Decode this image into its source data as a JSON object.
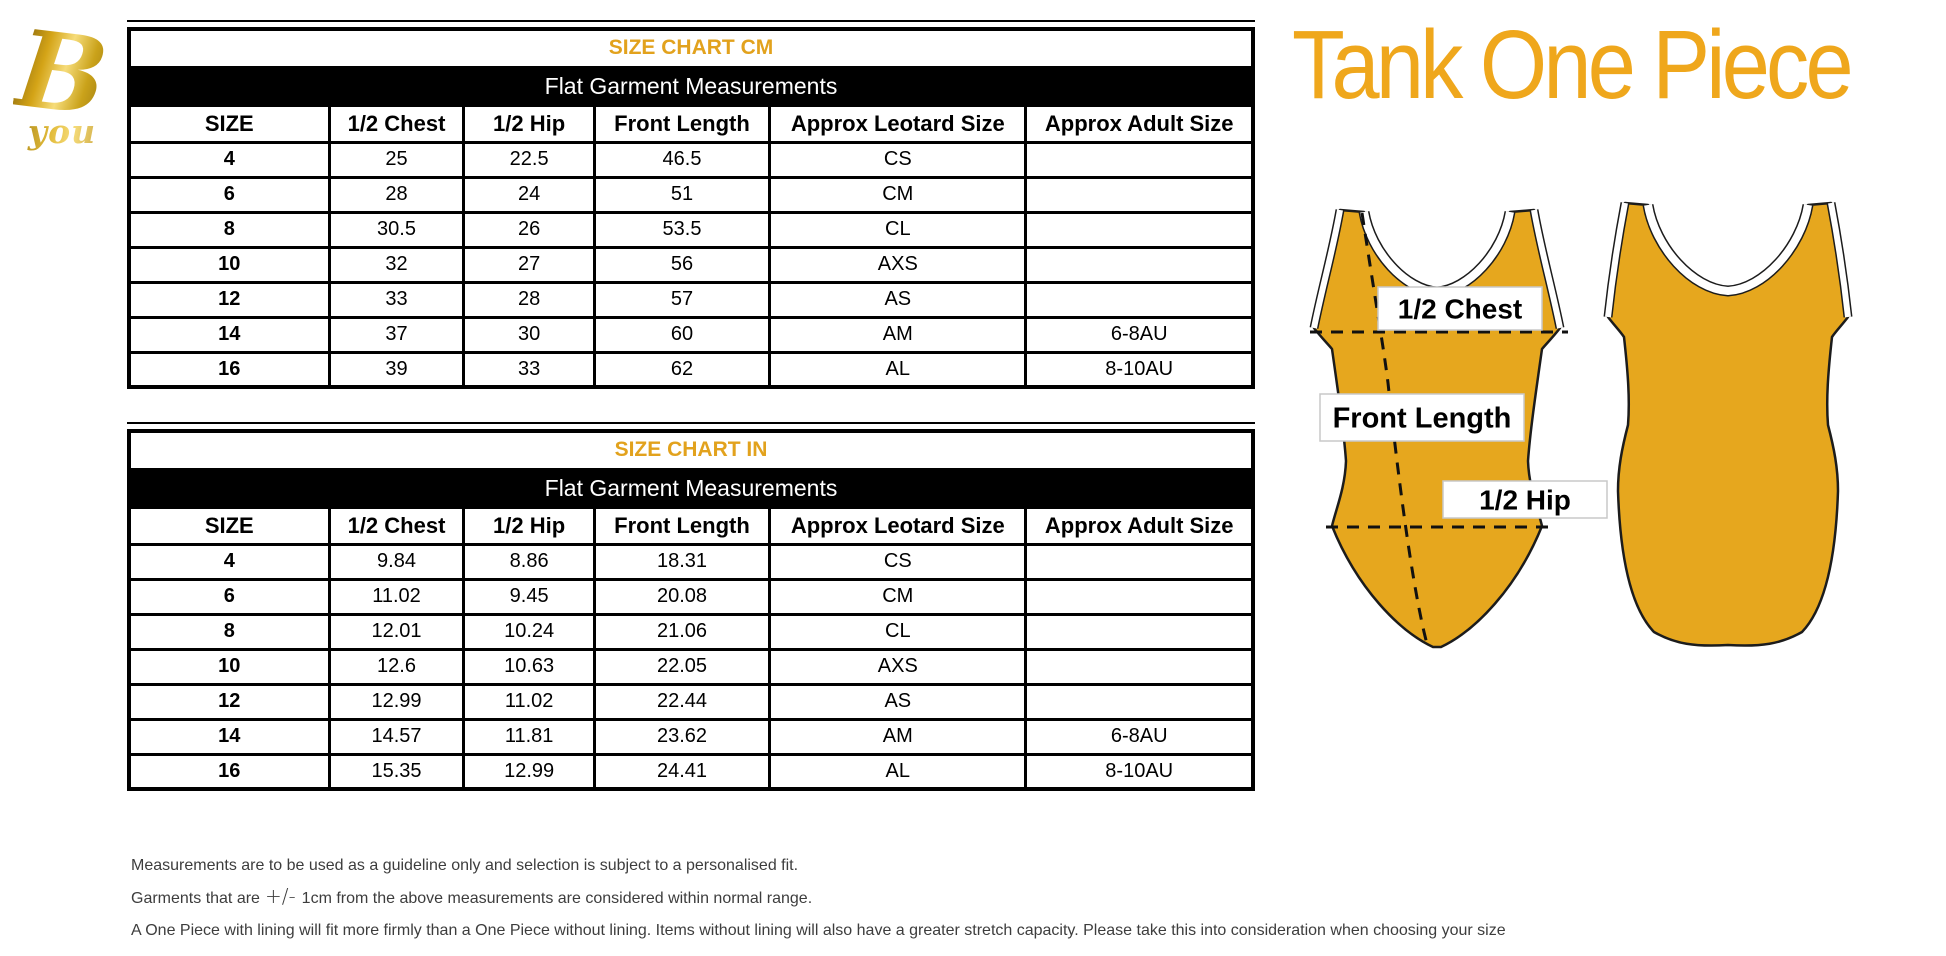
{
  "brand": {
    "letter": "B",
    "word": "you"
  },
  "product": {
    "title": "Tank One Piece"
  },
  "colors": {
    "table_title_gold": "#E2A21D",
    "product_title_gold": "#EFA71C",
    "leotard_gold": "#E6A71E",
    "subtitle_bar": "#000000",
    "footnote_text": "#3d3d3d"
  },
  "tables": [
    {
      "name": "size-chart-cm",
      "title": "SIZE CHART CM",
      "subtitle": "Flat Garment Measurements",
      "columns": [
        "SIZE",
        "1/2 Chest",
        "1/2 Hip",
        "Front Length",
        "Approx Leotard Size",
        "Approx Adult Size"
      ],
      "rows": [
        [
          "4",
          "25",
          "22.5",
          "46.5",
          "CS",
          ""
        ],
        [
          "6",
          "28",
          "24",
          "51",
          "CM",
          ""
        ],
        [
          "8",
          "30.5",
          "26",
          "53.5",
          "CL",
          ""
        ],
        [
          "10",
          "32",
          "27",
          "56",
          "AXS",
          ""
        ],
        [
          "12",
          "33",
          "28",
          "57",
          "AS",
          ""
        ],
        [
          "14",
          "37",
          "30",
          "60",
          "AM",
          "6-8AU"
        ],
        [
          "16",
          "39",
          "33",
          "62",
          "AL",
          "8-10AU"
        ]
      ]
    },
    {
      "name": "size-chart-in",
      "title": "SIZE CHART IN",
      "subtitle": "Flat Garment Measurements",
      "columns": [
        "SIZE",
        "1/2 Chest",
        "1/2 Hip",
        "Front Length",
        "Approx Leotard Size",
        "Approx Adult Size"
      ],
      "rows": [
        [
          "4",
          "9.84",
          "8.86",
          "18.31",
          "CS",
          ""
        ],
        [
          "6",
          "11.02",
          "9.45",
          "20.08",
          "CM",
          ""
        ],
        [
          "8",
          "12.01",
          "10.24",
          "21.06",
          "CL",
          ""
        ],
        [
          "10",
          "12.6",
          "10.63",
          "22.05",
          "AXS",
          ""
        ],
        [
          "12",
          "12.99",
          "11.02",
          "22.44",
          "AS",
          ""
        ],
        [
          "14",
          "14.57",
          "11.81",
          "23.62",
          "AM",
          "6-8AU"
        ],
        [
          "16",
          "15.35",
          "12.99",
          "24.41",
          "AL",
          "8-10AU"
        ]
      ]
    }
  ],
  "diagram": {
    "chest_label": "1/2 Chest",
    "front_length_label": "Front Length",
    "hip_label": "1/2 Hip"
  },
  "footnotes": {
    "line1": "Measurements are to be used as a guideline only and selection is subject to a personalised fit.",
    "line2_prefix": "Garments that are",
    "line2_symbol": "+/-",
    "line2_suffix": "1cm from the above measurements are considered within normal range.",
    "line3": "A One Piece with lining will fit more firmly than a One Piece without lining.  Items without lining will also have a greater stretch capacity. Please take this into consideration when choosing your size"
  }
}
